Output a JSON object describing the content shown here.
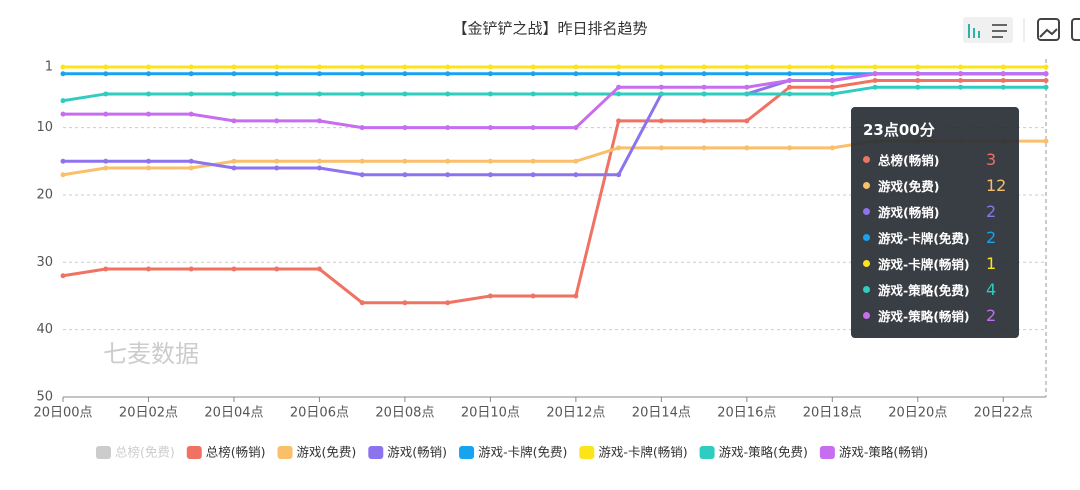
{
  "chart_data": {
    "type": "line",
    "title": "【金铲铲之战】昨日排名趋势",
    "watermark": "七麦数据",
    "categories": [
      "20日00点",
      null,
      "20日02点",
      null,
      "20日04点",
      null,
      "20日06点",
      null,
      "20日08点",
      null,
      "20日10点",
      null,
      "20日12点",
      null,
      "20日14点",
      null,
      "20日16点",
      null,
      "20日18点",
      null,
      "20日20点",
      null,
      "20日22点",
      null
    ],
    "ylim": [
      1,
      50
    ],
    "y_inverted": true,
    "yticks": [
      1,
      10,
      20,
      30,
      40,
      50
    ],
    "grid": true,
    "series": [
      {
        "name": "总榜(免费)",
        "color": "#cccccc",
        "hidden": true,
        "values": [
          null,
          null,
          null,
          null,
          null,
          null,
          null,
          null,
          null,
          null,
          null,
          null,
          null,
          null,
          null,
          null,
          null,
          null,
          null,
          null,
          null,
          null,
          null,
          null
        ]
      },
      {
        "name": "总榜(畅销)",
        "color": "#ef7262",
        "values": [
          32,
          31,
          31,
          31,
          31,
          31,
          31,
          36,
          36,
          36,
          35,
          35,
          35,
          9,
          9,
          9,
          9,
          4,
          4,
          3,
          3,
          3,
          3,
          3
        ]
      },
      {
        "name": "游戏(免费)",
        "color": "#f9bf6a",
        "values": [
          17,
          16,
          16,
          16,
          15,
          15,
          15,
          15,
          15,
          15,
          15,
          15,
          15,
          13,
          13,
          13,
          13,
          13,
          13,
          12,
          12,
          12,
          12,
          12
        ]
      },
      {
        "name": "游戏(畅销)",
        "color": "#8d73ee",
        "values": [
          15,
          15,
          15,
          15,
          16,
          16,
          16,
          17,
          17,
          17,
          17,
          17,
          17,
          17,
          5,
          5,
          5,
          3,
          3,
          2,
          2,
          2,
          2,
          2
        ]
      },
      {
        "name": "游戏-卡牌(免费)",
        "color": "#16a3f0",
        "values": [
          2,
          2,
          2,
          2,
          2,
          2,
          2,
          2,
          2,
          2,
          2,
          2,
          2,
          2,
          2,
          2,
          2,
          2,
          2,
          2,
          2,
          2,
          2,
          2
        ]
      },
      {
        "name": "游戏-卡牌(畅销)",
        "color": "#fbe51a",
        "values": [
          1,
          1,
          1,
          1,
          1,
          1,
          1,
          1,
          1,
          1,
          1,
          1,
          1,
          1,
          1,
          1,
          1,
          1,
          1,
          1,
          1,
          1,
          1,
          1
        ]
      },
      {
        "name": "游戏-策略(免费)",
        "color": "#2ecdc0",
        "values": [
          6,
          5,
          5,
          5,
          5,
          5,
          5,
          5,
          5,
          5,
          5,
          5,
          5,
          5,
          5,
          5,
          5,
          5,
          5,
          4,
          4,
          4,
          4,
          4
        ]
      },
      {
        "name": "游戏-策略(畅销)",
        "color": "#c66df0",
        "values": [
          8,
          8,
          8,
          8,
          9,
          9,
          9,
          10,
          10,
          10,
          10,
          10,
          10,
          4,
          4,
          4,
          4,
          3,
          3,
          2,
          2,
          2,
          2,
          2
        ]
      }
    ],
    "tooltip": {
      "title": "23点00分"
    }
  }
}
